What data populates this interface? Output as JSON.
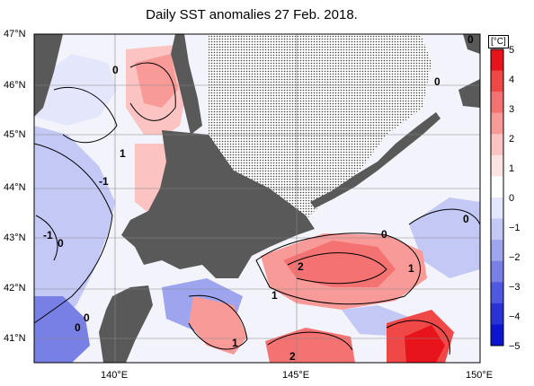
{
  "title": "Daily SST anomalies 27 Feb. 2018.",
  "unit": "[°C]",
  "latitudes": [
    "47°N",
    "46°N",
    "45°N",
    "44°N",
    "43°N",
    "42°N",
    "41°N"
  ],
  "longitudes": [
    "140°E",
    "145°E",
    "150°E"
  ],
  "colorbar": {
    "labels": [
      "5",
      "4",
      "3",
      "2",
      "1",
      "0",
      "−1",
      "−2",
      "−3",
      "−4",
      "−5"
    ],
    "colors": [
      "#e8141c",
      "#f04846",
      "#f47372",
      "#f89a98",
      "#fbc3c1",
      "#fde3e2",
      "#ffffff",
      "#e4e6fb",
      "#c4c8f5",
      "#9ea4ee",
      "#7880e6",
      "#5058df",
      "#2a32d6",
      "#0c14d0"
    ]
  },
  "contour_labels": [
    "0",
    "0",
    "-1",
    "-1",
    "0",
    "0",
    "0",
    "0",
    "0",
    "1",
    "2",
    "1",
    "1",
    "2",
    "1",
    "0"
  ],
  "legend": {
    "land": "#595959",
    "sea_ice": "#dcdcdc"
  }
}
